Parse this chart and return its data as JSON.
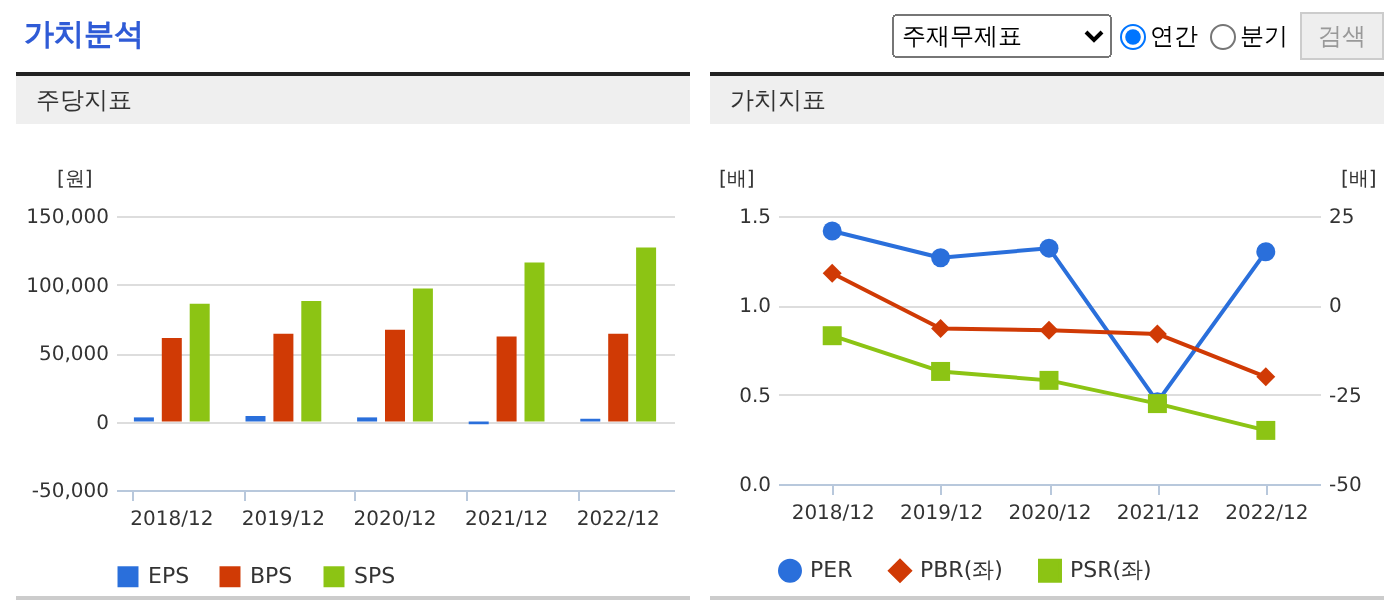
{
  "chart_data": [
    {
      "type": "other",
      "title": "가치분석",
      "annotations": [
        "주재무제표",
        "연간",
        "분기",
        "검색"
      ]
    },
    {
      "type": "bar",
      "title": "주당지표",
      "ylabel": "[원]",
      "categories": [
        "2018/12",
        "2019/12",
        "2020/12",
        "2021/12",
        "2022/12"
      ],
      "series": [
        {
          "name": "EPS",
          "color": "#2a6fdb",
          "values": [
            3000,
            4000,
            3000,
            -2000,
            2000
          ]
        },
        {
          "name": "BPS",
          "color": "#d03a05",
          "values": [
            61000,
            64000,
            67000,
            62000,
            64000
          ]
        },
        {
          "name": "SPS",
          "color": "#8cc414",
          "values": [
            86000,
            88000,
            97000,
            116000,
            127000
          ]
        }
      ],
      "ylim": [
        -50000,
        150000
      ],
      "yticks": [
        {
          "value": -50000,
          "label": "-50,000"
        },
        0,
        {
          "value": 50000,
          "label": "50,000"
        },
        {
          "value": 100000,
          "label": "100,000"
        },
        {
          "value": 150000,
          "label": "150,000"
        }
      ],
      "grid": "y",
      "legend": "bottom"
    },
    {
      "type": "line",
      "title": "가치지표",
      "ylabel": "[배]",
      "y2label": "[배]",
      "categories": [
        "2018/12",
        "2019/12",
        "2020/12",
        "2021/12",
        "2022/12"
      ],
      "series": [
        {
          "name": "PER",
          "color": "#2a6fdb",
          "axis": "y2",
          "marker": "circle",
          "values": [
            20.8,
            13.3,
            16.0,
            -27,
            15
          ]
        },
        {
          "name": "PBR(좌)",
          "color": "#d03a05",
          "marker": "diamond",
          "values": [
            1.18,
            0.87,
            0.86,
            0.84,
            0.6
          ]
        },
        {
          "name": "PSR(좌)",
          "color": "#8cc414",
          "marker": "square",
          "values": [
            0.83,
            0.63,
            0.58,
            0.45,
            0.3
          ]
        }
      ],
      "ylim": [
        0,
        1.5
      ],
      "yticks": [
        {
          "value": 0,
          "label": "0.0"
        },
        0.5,
        {
          "value": 1,
          "label": "1.0"
        },
        1.5
      ],
      "y2lim": [
        -50,
        25
      ],
      "y2ticks": [
        -50,
        -25,
        0,
        25
      ],
      "grid": "y",
      "legend": "bottom",
      "line_style": "solid"
    }
  ]
}
